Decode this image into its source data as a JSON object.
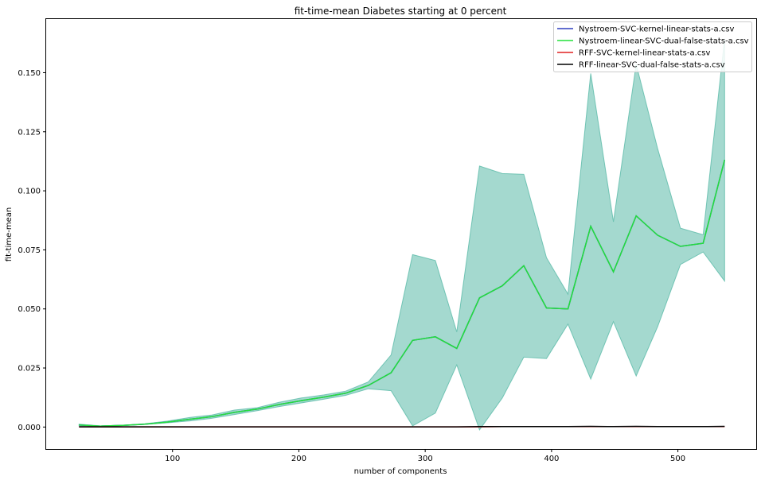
{
  "chart_data": {
    "type": "line",
    "title": "fit-time-mean Diabetes starting at 0 percent",
    "xlabel": "number of components",
    "ylabel": "fit-time-mean",
    "xlim": [
      0,
      562
    ],
    "ylim": [
      -0.0093,
      0.1727
    ],
    "xticks": [
      100,
      200,
      300,
      400,
      500
    ],
    "yticks": [
      0.0,
      0.025,
      0.05,
      0.075,
      0.1,
      0.125,
      0.15
    ],
    "ytick_labels": [
      "0.000",
      "0.025",
      "0.050",
      "0.075",
      "0.100",
      "0.125",
      "0.150"
    ],
    "grid": false,
    "legend_position": "top-right",
    "x": [
      26,
      43,
      61,
      78,
      96,
      114,
      131,
      149,
      167,
      184,
      202,
      220,
      237,
      255,
      273,
      290,
      308,
      325,
      343,
      361,
      378,
      396,
      413,
      431,
      449,
      467,
      484,
      502,
      520,
      537
    ],
    "band": {
      "color": "#4ab3a0",
      "lower": [
        0.0005,
        0.0003,
        0.0006,
        0.0011,
        0.0018,
        0.0026,
        0.0037,
        0.0053,
        0.0069,
        0.0086,
        0.0102,
        0.0118,
        0.0134,
        0.0162,
        0.0154,
        0.0005,
        0.0059,
        0.0263,
        -0.0012,
        0.0123,
        0.0296,
        0.029,
        0.0436,
        0.0203,
        0.0446,
        0.0216,
        0.0425,
        0.0688,
        0.0741,
        0.0618
      ],
      "upper": [
        0.0012,
        0.0005,
        0.0008,
        0.0014,
        0.0025,
        0.0041,
        0.0051,
        0.0072,
        0.0082,
        0.0104,
        0.0123,
        0.0136,
        0.0152,
        0.0191,
        0.0305,
        0.073,
        0.0705,
        0.0403,
        0.1105,
        0.1073,
        0.107,
        0.0717,
        0.0563,
        0.1497,
        0.0869,
        0.1536,
        0.1178,
        0.0842,
        0.0814,
        0.1644
      ]
    },
    "series": [
      {
        "name": "Nystroem-SVC-kernel-linear-stats-a.csv",
        "color": "#2f3fbf",
        "values": [
          0.0009,
          0.0004,
          0.0007,
          0.0012,
          0.0021,
          0.0033,
          0.0044,
          0.0062,
          0.0076,
          0.0095,
          0.0112,
          0.0127,
          0.0143,
          0.0176,
          0.023,
          0.0367,
          0.0382,
          0.0333,
          0.0547,
          0.0598,
          0.0683,
          0.0504,
          0.05,
          0.085,
          0.0657,
          0.0894,
          0.0812,
          0.0765,
          0.0778,
          0.1131
        ]
      },
      {
        "name": "Nystroem-linear-SVC-dual-false-stats-a.csv",
        "color": "#22e03a",
        "values": [
          0.0009,
          0.0004,
          0.0007,
          0.0012,
          0.0021,
          0.0033,
          0.0044,
          0.0062,
          0.0076,
          0.0095,
          0.0112,
          0.0127,
          0.0143,
          0.0176,
          0.023,
          0.0367,
          0.0382,
          0.0333,
          0.0547,
          0.0598,
          0.0683,
          0.0504,
          0.05,
          0.085,
          0.0657,
          0.0894,
          0.0812,
          0.0765,
          0.0778,
          0.1131
        ]
      },
      {
        "name": "RFF-SVC-kernel-linear-stats-a.csv",
        "color": "#e02020",
        "values": [
          0.0001,
          0.0001,
          0.0001,
          0.0001,
          0.0001,
          0.0001,
          0.0001,
          0.0001,
          0.0001,
          0.0001,
          0.0001,
          0.0001,
          0.0001,
          0.0001,
          0.0001,
          0.0001,
          0.0001,
          0.0001,
          0.0001,
          0.0002,
          0.0002,
          0.0002,
          0.0002,
          0.0002,
          0.0002,
          0.0002,
          0.0002,
          0.0002,
          0.0002,
          0.0002
        ]
      },
      {
        "name": "RFF-linear-SVC-dual-false-stats-a.csv",
        "color": "#000000",
        "values": [
          0.0001,
          0.0001,
          0.0001,
          0.0001,
          0.0001,
          0.0001,
          0.0001,
          0.0001,
          0.0001,
          0.0001,
          0.0001,
          0.0001,
          0.0001,
          0.0001,
          0.0001,
          0.0001,
          0.0001,
          0.0001,
          0.0002,
          0.0002,
          0.0002,
          0.0002,
          0.0002,
          0.0003,
          0.0002,
          0.0003,
          0.0002,
          0.0002,
          0.0002,
          0.0003
        ]
      }
    ]
  }
}
